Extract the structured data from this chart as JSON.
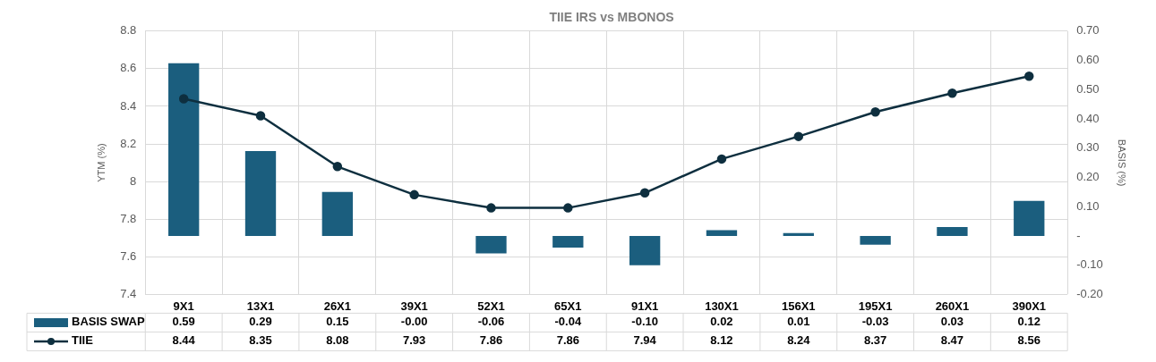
{
  "chart_data": {
    "type": "bar",
    "title": "TIIE IRS vs MBONOS",
    "ylabel": "YTM (%)",
    "y2label": "BASIS (%)",
    "categories": [
      "9X1",
      "13X1",
      "26X1",
      "39X1",
      "52X1",
      "65X1",
      "91X1",
      "130X1",
      "156X1",
      "195X1",
      "260X1",
      "390X1"
    ],
    "series": [
      {
        "name": "BASIS SWAP",
        "axis": "y2",
        "color": "#1b5e7e",
        "values": [
          0.59,
          0.29,
          0.15,
          0,
          -0.06,
          -0.04,
          -0.1,
          0.02,
          0.01,
          -0.03,
          0.03,
          0.12
        ],
        "value_labels": [
          "0.59",
          "0.29",
          "0.15",
          "-0.00",
          "-0.06",
          "-0.04",
          "-0.10",
          "0.02",
          "0.01",
          "-0.03",
          "0.03",
          "0.12"
        ]
      },
      {
        "name": "TIIE",
        "type": "line",
        "color": "#0e2f3f",
        "marker": "circle",
        "values": [
          8.44,
          8.35,
          8.08,
          7.93,
          7.86,
          7.86,
          7.94,
          8.12,
          8.24,
          8.37,
          8.47,
          8.56
        ],
        "value_labels": [
          "8.44",
          "8.35",
          "8.08",
          "7.93",
          "7.86",
          "7.86",
          "7.94",
          "8.12",
          "8.24",
          "8.37",
          "8.47",
          "8.56"
        ]
      }
    ],
    "ylim": [
      7.4,
      8.8
    ],
    "yticks": [
      7.4,
      7.6,
      7.8,
      8.0,
      8.2,
      8.4,
      8.6,
      8.8
    ],
    "y2lim": [
      -0.2,
      0.7
    ],
    "y2ticks": [
      {
        "value": -0.2,
        "label": "-0.20"
      },
      {
        "value": -0.1,
        "label": "-0.10"
      },
      {
        "value": 0,
        "label": "-"
      },
      {
        "value": 0.1,
        "label": "0.10"
      },
      {
        "value": 0.2,
        "label": "0.20"
      },
      {
        "value": 0.3,
        "label": "0.30"
      },
      {
        "value": 0.4,
        "label": "0.40"
      },
      {
        "value": 0.5,
        "label": "0.50"
      },
      {
        "value": 0.6,
        "label": "0.60"
      },
      {
        "value": 0.7,
        "label": "0.70"
      }
    ],
    "grid": true,
    "legend": "bottom left"
  }
}
